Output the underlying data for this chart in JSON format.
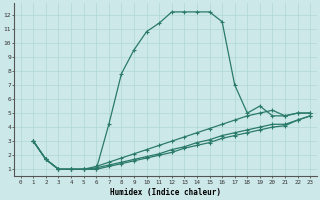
{
  "xlabel": "Humidex (Indice chaleur)",
  "bg_color": "#cde8e8",
  "line_color": "#2a7a6a",
  "grid_color": "#b0d8d0",
  "xlim": [
    -0.5,
    23.5
  ],
  "ylim": [
    0.5,
    12.8
  ],
  "xticks": [
    0,
    1,
    2,
    3,
    4,
    5,
    6,
    7,
    8,
    9,
    10,
    11,
    12,
    13,
    14,
    15,
    16,
    17,
    18,
    19,
    20,
    21,
    22,
    23
  ],
  "yticks": [
    1,
    2,
    3,
    4,
    5,
    6,
    7,
    8,
    9,
    10,
    11,
    12
  ],
  "lines": [
    {
      "x": [
        1,
        2,
        3,
        4,
        5,
        6,
        7,
        8,
        9,
        10,
        11,
        12,
        13,
        14,
        15,
        16,
        17,
        18,
        19,
        20,
        21,
        22,
        23
      ],
      "y": [
        3,
        1.7,
        1,
        1,
        1,
        1,
        4.2,
        7.8,
        9.5,
        10.8,
        11.4,
        12.2,
        12.2,
        12.2,
        12.2,
        11.5,
        7.0,
        5.0,
        5.5,
        4.8,
        4.8,
        5.0,
        5.0
      ]
    },
    {
      "x": [
        1,
        2,
        3,
        4,
        5,
        6,
        7,
        8,
        9,
        10,
        11,
        12,
        13,
        14,
        15,
        16,
        17,
        18,
        19,
        20,
        21,
        22,
        23
      ],
      "y": [
        3,
        1.7,
        1,
        1,
        1,
        1.2,
        1.5,
        1.8,
        2.1,
        2.4,
        2.7,
        3.0,
        3.3,
        3.6,
        3.9,
        4.2,
        4.5,
        4.8,
        5.0,
        5.2,
        4.8,
        5.0,
        5.0
      ]
    },
    {
      "x": [
        1,
        2,
        3,
        4,
        5,
        6,
        7,
        8,
        9,
        10,
        11,
        12,
        13,
        14,
        15,
        16,
        17,
        18,
        19,
        20,
        21,
        22,
        23
      ],
      "y": [
        3,
        1.7,
        1,
        1,
        1,
        1.1,
        1.3,
        1.5,
        1.7,
        1.9,
        2.1,
        2.4,
        2.6,
        2.9,
        3.1,
        3.4,
        3.6,
        3.8,
        4.0,
        4.2,
        4.2,
        4.5,
        4.8
      ]
    },
    {
      "x": [
        1,
        2,
        3,
        4,
        5,
        6,
        7,
        8,
        9,
        10,
        11,
        12,
        13,
        14,
        15,
        16,
        17,
        18,
        19,
        20,
        21,
        22,
        23
      ],
      "y": [
        3,
        1.7,
        1,
        1,
        1,
        1.0,
        1.2,
        1.4,
        1.6,
        1.8,
        2.0,
        2.2,
        2.5,
        2.7,
        2.9,
        3.2,
        3.4,
        3.6,
        3.8,
        4.0,
        4.1,
        4.5,
        4.8
      ]
    }
  ]
}
